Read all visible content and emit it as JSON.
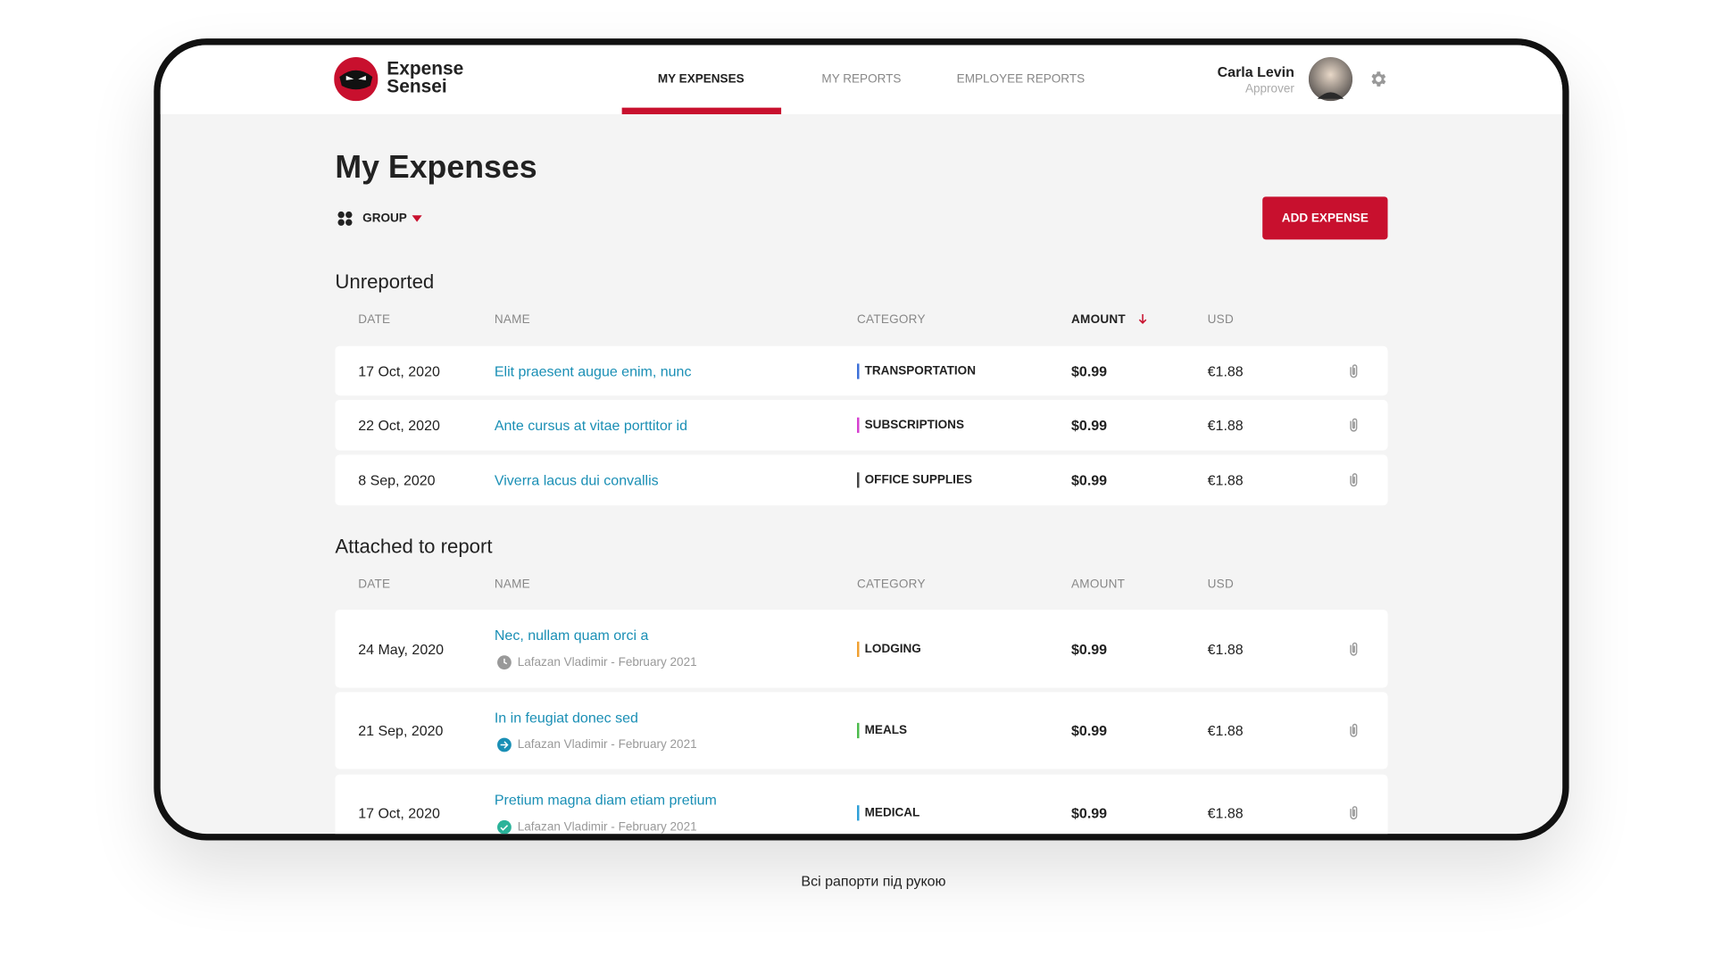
{
  "header": {
    "logo": [
      "Expense",
      "Sensei"
    ],
    "nav": [
      "MY EXPENSES",
      "MY REPORTS",
      "EMPLOYEE REPORTS"
    ],
    "user_name": "Carla Levin",
    "user_role": "Approver"
  },
  "page": {
    "title": "My Expenses",
    "group_label": "GROUP",
    "add_button": "ADD EXPENSE"
  },
  "sections": [
    {
      "title": "Unreported",
      "columns": [
        "DATE",
        "NAME",
        "CATEGORY",
        "AMOUNT",
        "USD"
      ],
      "rows": [
        {
          "date": "17 Oct, 2020",
          "name": "Elit praesent augue enim, nunc",
          "category": "TRANSPORTATION",
          "color": "#3b6fd8",
          "amount": "$0.99",
          "usd": "€1.88"
        },
        {
          "date": "22 Oct, 2020",
          "name": "Ante cursus at vitae porttitor id",
          "category": "SUBSCRIPTIONS",
          "color": "#d63fd0",
          "amount": "$0.99",
          "usd": "€1.88"
        },
        {
          "date": "8 Sep, 2020",
          "name": "Viverra lacus dui convallis",
          "category": "OFFICE SUPPLIES",
          "color": "#444444",
          "amount": "$0.99",
          "usd": "€1.88"
        }
      ]
    },
    {
      "title": "Attached to report",
      "columns": [
        "DATE",
        "NAME",
        "CATEGORY",
        "AMOUNT",
        "USD"
      ],
      "rows": [
        {
          "date": "24 May, 2020",
          "name": "Nec, nullam quam orci a",
          "submitter": "Lafazan Vladimir - February 2021",
          "category": "LODGING",
          "color": "#f0a030",
          "amount": "$0.99",
          "usd": "€1.88"
        },
        {
          "date": "21 Sep, 2020",
          "name": "In in feugiat donec sed",
          "submitter": "Lafazan Vladimir - February 2021",
          "category": "MEALS",
          "color": "#4cbb4c",
          "amount": "$0.99",
          "usd": "€1.88"
        },
        {
          "date": "17 Oct, 2020",
          "name": "Pretium magna diam etiam pretium",
          "submitter": "Lafazan Vladimir - February 2021",
          "category": "MEDICAL",
          "color": "#2e9fd8",
          "amount": "$0.99",
          "usd": "€1.88"
        }
      ]
    }
  ],
  "caption": "Всі рапорти під рукою"
}
